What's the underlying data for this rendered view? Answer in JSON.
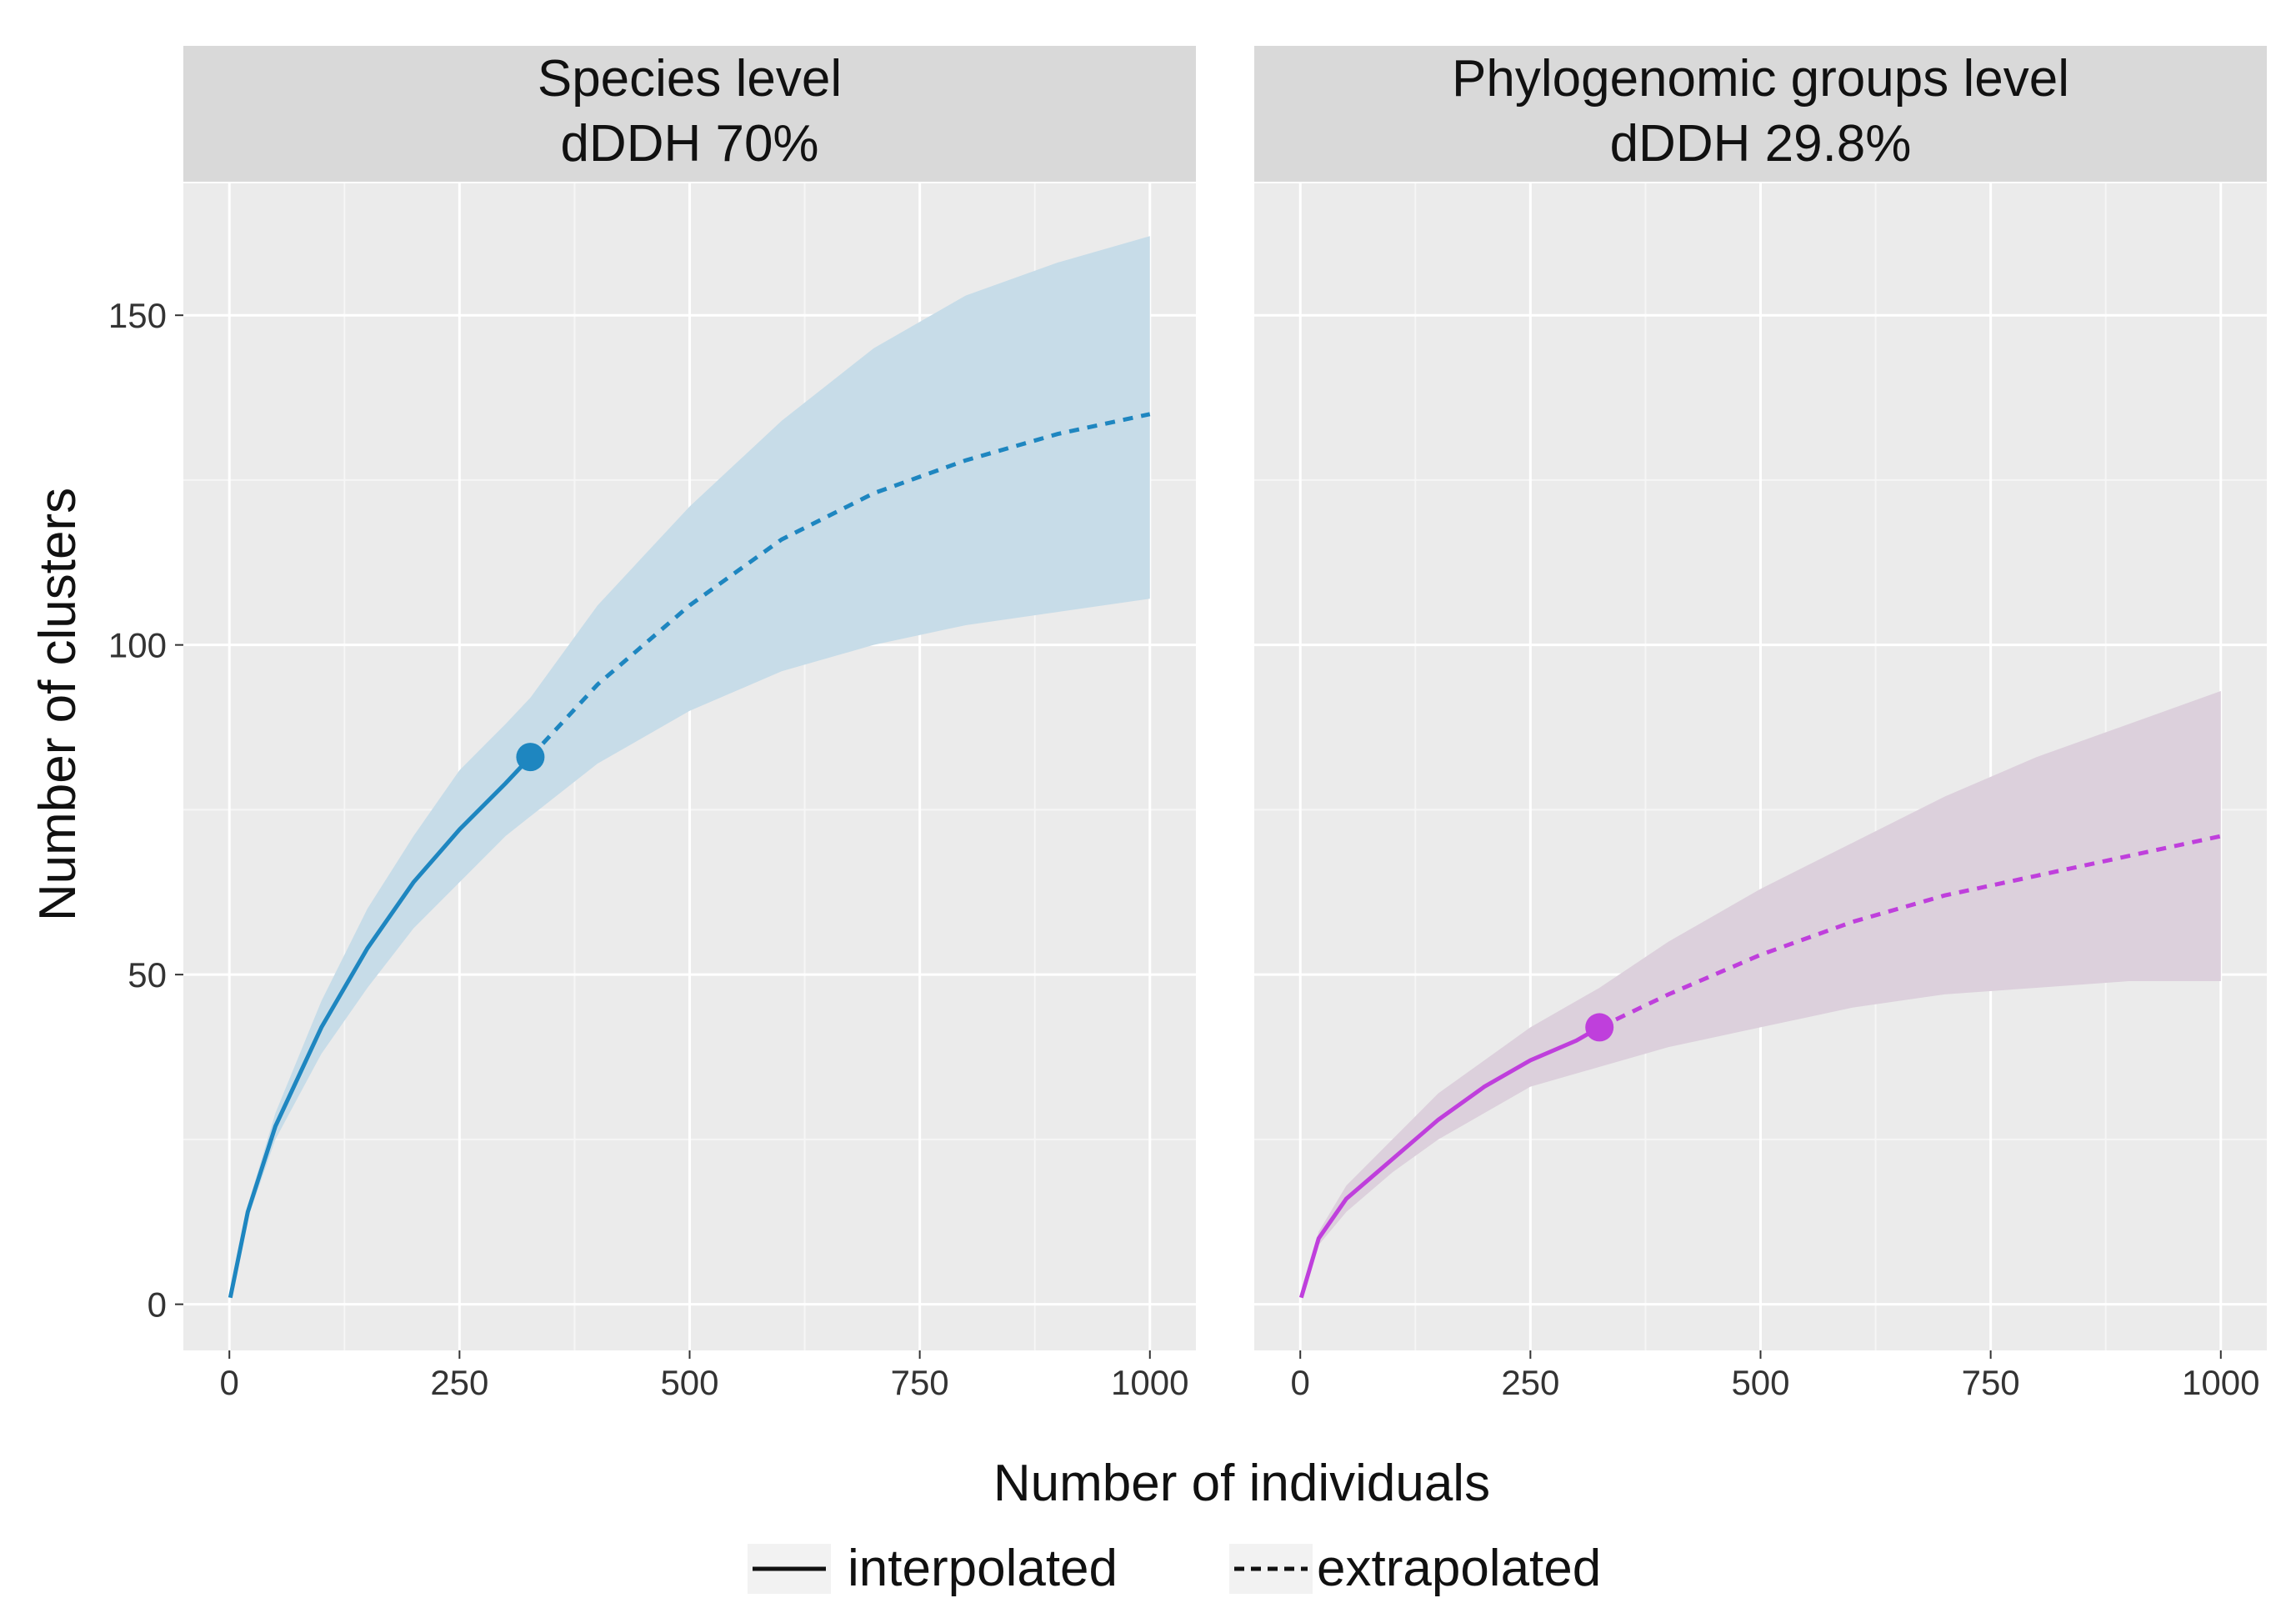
{
  "chart_data": {
    "type": "line",
    "xlabel": "Number of individuals",
    "ylabel": "Number of clusters",
    "xlim": [
      -50,
      1050
    ],
    "ylim": [
      -7,
      170
    ],
    "x_ticks": [
      0,
      250,
      500,
      750,
      1000
    ],
    "y_ticks": [
      0,
      50,
      100,
      150
    ],
    "legend": {
      "position": "bottom",
      "items": [
        {
          "label": "interpolated",
          "linetype": "solid"
        },
        {
          "label": "extrapolated",
          "linetype": "dashed"
        }
      ]
    },
    "panels": [
      {
        "strip_line1": "Species level",
        "strip_line2": "dDDH 70%",
        "color": "#1e86c0",
        "band_color": "#c7dce8",
        "observed_point": {
          "x": 327,
          "y": 83
        },
        "interpolated": {
          "x": [
            1,
            20,
            50,
            100,
            150,
            200,
            250,
            300,
            327
          ],
          "y": [
            1,
            14,
            27,
            42,
            54,
            64,
            72,
            79,
            83
          ]
        },
        "extrapolated": {
          "x": [
            327,
            400,
            500,
            600,
            700,
            800,
            900,
            1000
          ],
          "y": [
            83,
            94,
            106,
            116,
            123,
            128,
            132,
            135
          ]
        },
        "ci_x": [
          1,
          20,
          50,
          100,
          150,
          200,
          250,
          300,
          327,
          400,
          500,
          600,
          700,
          800,
          900,
          1000
        ],
        "ci_lower": [
          1,
          13,
          25,
          38,
          48,
          57,
          64,
          71,
          74,
          82,
          90,
          96,
          100,
          103,
          105,
          107
        ],
        "ci_upper": [
          1,
          15,
          29,
          46,
          60,
          71,
          81,
          88,
          92,
          106,
          121,
          134,
          145,
          153,
          158,
          162
        ]
      },
      {
        "strip_line1": "Phylogenomic groups level",
        "strip_line2": "dDDH 29.8%",
        "color": "#bf3fdc",
        "band_color": "#dcd0dc",
        "observed_point": {
          "x": 325,
          "y": 42
        },
        "interpolated": {
          "x": [
            1,
            20,
            50,
            100,
            150,
            200,
            250,
            300,
            325
          ],
          "y": [
            1,
            10,
            16,
            22,
            28,
            33,
            37,
            40,
            42
          ]
        },
        "extrapolated": {
          "x": [
            325,
            400,
            500,
            600,
            700,
            800,
            900,
            1000
          ],
          "y": [
            42,
            47,
            53,
            58,
            62,
            65,
            68,
            71
          ]
        },
        "ci_x": [
          1,
          20,
          50,
          100,
          150,
          200,
          250,
          300,
          325,
          400,
          500,
          600,
          700,
          800,
          900,
          1000
        ],
        "ci_lower": [
          1,
          9,
          14,
          20,
          25,
          29,
          33,
          35,
          36,
          39,
          42,
          45,
          47,
          48,
          49,
          49
        ],
        "ci_upper": [
          1,
          11,
          18,
          25,
          32,
          37,
          42,
          46,
          48,
          55,
          63,
          70,
          77,
          83,
          88,
          93
        ]
      }
    ]
  }
}
